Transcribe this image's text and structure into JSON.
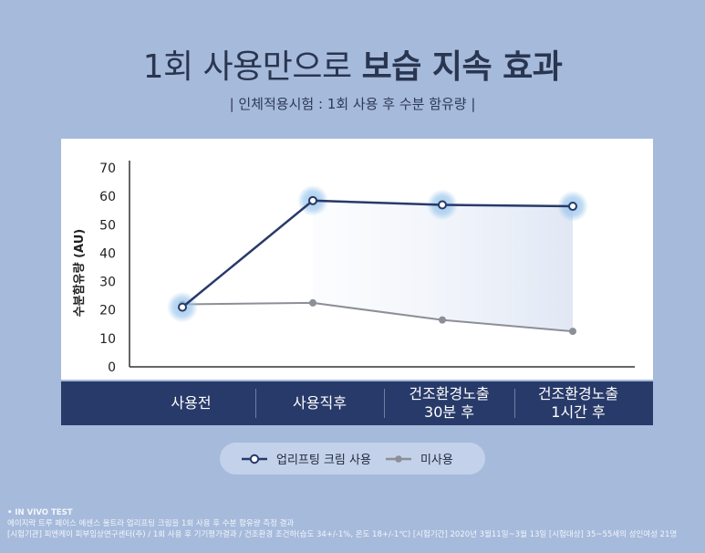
{
  "title": {
    "part1": "1회 사용만으로",
    "part2": "보습 지속 효과"
  },
  "subtitle": "| 인체적용시험 : 1회 사용 후 수분 함유량 |",
  "chart_data": {
    "type": "line",
    "categories": [
      "사용전",
      "사용직후",
      "건조환경노출\n30분 후",
      "건조환경노출\n1시간 후"
    ],
    "series": [
      {
        "name": "업리프팅 크림 사용",
        "values": [
          21,
          58.5,
          57,
          56.5
        ],
        "color": "#283a69"
      },
      {
        "name": "미사용",
        "values": [
          22,
          22.5,
          16.5,
          12.5
        ],
        "color": "#8c8f98"
      }
    ],
    "ylabel": "수분함유량 (AU)",
    "yticks": [
      0,
      10,
      20,
      30,
      40,
      50,
      60,
      70
    ],
    "ylim": [
      0,
      70
    ],
    "legend_position": "bottom"
  },
  "legend": {
    "series1": "업리프팅 크림 사용",
    "series2": "미사용"
  },
  "notes": {
    "head": "• IN VIVO TEST",
    "line1": "에이지락 트루 페이스 에센스 울트라 업리프팅 크림을 1회 사용 후 수분 함유량 측정 결과",
    "line2": "[시험기관] 피엔케이 피부임상연구센터(주) / 1회 사용 후 기기평가결과 / 건조환경 조건하(습도 34+/-1%, 온도 18+/-1℃) [시험기간] 2020년 3월11일~3월 13일 [시험대상] 35~55세의 성인여성 21명"
  },
  "colors": {
    "background": "#a6badb",
    "navy": "#283a69",
    "gray": "#8c8f98",
    "glow": "#9cc7ec"
  }
}
